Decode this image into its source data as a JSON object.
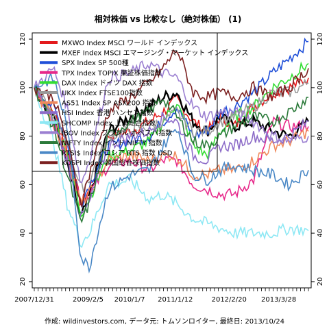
{
  "chart_data": {
    "type": "line",
    "title": "相対株価 vs 比較なし（絶対株価） (1)",
    "credit": "作成: wildinvestors.com, データ元: トムソンロイター, 最終日: 2013/10/24",
    "x_tick_labels": [
      "2007/12/31",
      "2009/2/5",
      "2010/1/7",
      "2011/1/12",
      "2012/2/20",
      "2013/3/28"
    ],
    "x_ticks": [
      0,
      0.1963,
      0.3477,
      0.5144,
      0.7106,
      0.8916
    ],
    "y_ticks": [
      20,
      40,
      60,
      80,
      100,
      120
    ],
    "ylim": [
      18,
      122
    ],
    "legend_placement": "top-left",
    "series": [
      {
        "name": "MXWO Index MSCI ワールド インデックス",
        "color": "#e31a1c",
        "points": [
          [
            0,
            100
          ],
          [
            0.07,
            90
          ],
          [
            0.12,
            75
          ],
          [
            0.17,
            52
          ],
          [
            0.2,
            58
          ],
          [
            0.27,
            80
          ],
          [
            0.35,
            82
          ],
          [
            0.42,
            86
          ],
          [
            0.47,
            90
          ],
          [
            0.52,
            95
          ],
          [
            0.58,
            86
          ],
          [
            0.63,
            82
          ],
          [
            0.68,
            88
          ],
          [
            0.73,
            84
          ],
          [
            0.8,
            92
          ],
          [
            0.87,
            98
          ],
          [
            0.93,
            100
          ],
          [
            1,
            104
          ]
        ]
      },
      {
        "name": "MXEF Index MSCI エマージング・マーケット インデックス",
        "color": "#000000",
        "points": [
          [
            0,
            100
          ],
          [
            0.07,
            88
          ],
          [
            0.12,
            68
          ],
          [
            0.17,
            46
          ],
          [
            0.2,
            55
          ],
          [
            0.27,
            82
          ],
          [
            0.35,
            88
          ],
          [
            0.42,
            92
          ],
          [
            0.47,
            96
          ],
          [
            0.52,
            98
          ],
          [
            0.58,
            86
          ],
          [
            0.63,
            82
          ],
          [
            0.68,
            88
          ],
          [
            0.73,
            84
          ],
          [
            0.8,
            86
          ],
          [
            0.87,
            82
          ],
          [
            0.93,
            80
          ],
          [
            1,
            86
          ]
        ]
      },
      {
        "name": "SPX Index SP 500種",
        "color": "#1f4fd8",
        "points": [
          [
            0,
            100
          ],
          [
            0.07,
            92
          ],
          [
            0.12,
            78
          ],
          [
            0.17,
            52
          ],
          [
            0.2,
            60
          ],
          [
            0.27,
            76
          ],
          [
            0.35,
            78
          ],
          [
            0.42,
            80
          ],
          [
            0.47,
            86
          ],
          [
            0.52,
            92
          ],
          [
            0.58,
            80
          ],
          [
            0.63,
            82
          ],
          [
            0.68,
            90
          ],
          [
            0.73,
            92
          ],
          [
            0.8,
            98
          ],
          [
            0.87,
            106
          ],
          [
            0.93,
            112
          ],
          [
            1,
            119
          ]
        ]
      },
      {
        "name": "TPX Index TOPIX 東証株価指数",
        "color": "#e7298a",
        "points": [
          [
            0,
            100
          ],
          [
            0.07,
            86
          ],
          [
            0.12,
            72
          ],
          [
            0.17,
            54
          ],
          [
            0.2,
            56
          ],
          [
            0.27,
            68
          ],
          [
            0.35,
            70
          ],
          [
            0.42,
            66
          ],
          [
            0.47,
            70
          ],
          [
            0.52,
            70
          ],
          [
            0.58,
            60
          ],
          [
            0.63,
            58
          ],
          [
            0.68,
            56
          ],
          [
            0.73,
            56
          ],
          [
            0.8,
            62
          ],
          [
            0.87,
            86
          ],
          [
            0.93,
            84
          ],
          [
            1,
            84
          ]
        ]
      },
      {
        "name": "DAX Index ドイツ DAX 指数",
        "color": "#33dd33",
        "points": [
          [
            0,
            100
          ],
          [
            0.07,
            88
          ],
          [
            0.12,
            74
          ],
          [
            0.17,
            48
          ],
          [
            0.2,
            54
          ],
          [
            0.27,
            72
          ],
          [
            0.35,
            74
          ],
          [
            0.42,
            78
          ],
          [
            0.47,
            86
          ],
          [
            0.52,
            94
          ],
          [
            0.58,
            76
          ],
          [
            0.63,
            72
          ],
          [
            0.68,
            82
          ],
          [
            0.73,
            88
          ],
          [
            0.8,
            92
          ],
          [
            0.87,
            100
          ],
          [
            0.93,
            104
          ],
          [
            1,
            110
          ]
        ]
      },
      {
        "name": "UKX Index FTSE100指数",
        "color": "#999999",
        "points": [
          [
            0,
            100
          ],
          [
            0.07,
            88
          ],
          [
            0.12,
            78
          ],
          [
            0.17,
            58
          ],
          [
            0.2,
            62
          ],
          [
            0.27,
            80
          ],
          [
            0.35,
            82
          ],
          [
            0.42,
            84
          ],
          [
            0.47,
            86
          ],
          [
            0.52,
            90
          ],
          [
            0.58,
            82
          ],
          [
            0.63,
            82
          ],
          [
            0.68,
            86
          ],
          [
            0.73,
            88
          ],
          [
            0.8,
            92
          ],
          [
            0.87,
            98
          ],
          [
            0.93,
            98
          ],
          [
            1,
            102
          ]
        ]
      },
      {
        "name": "AS51 Index SP ASX200 指数",
        "color": "#f08a5d",
        "points": [
          [
            0,
            100
          ],
          [
            0.07,
            86
          ],
          [
            0.12,
            72
          ],
          [
            0.17,
            52
          ],
          [
            0.2,
            56
          ],
          [
            0.27,
            70
          ],
          [
            0.35,
            72
          ],
          [
            0.42,
            70
          ],
          [
            0.47,
            72
          ],
          [
            0.52,
            72
          ],
          [
            0.58,
            64
          ],
          [
            0.63,
            64
          ],
          [
            0.68,
            66
          ],
          [
            0.73,
            66
          ],
          [
            0.8,
            70
          ],
          [
            0.87,
            76
          ],
          [
            0.93,
            78
          ],
          [
            1,
            82
          ]
        ]
      },
      {
        "name": "HSI Index 香港 ハンセン指数",
        "color": "#8c6bc8",
        "points": [
          [
            0,
            100
          ],
          [
            0.07,
            86
          ],
          [
            0.12,
            70
          ],
          [
            0.17,
            46
          ],
          [
            0.2,
            52
          ],
          [
            0.27,
            76
          ],
          [
            0.35,
            80
          ],
          [
            0.42,
            82
          ],
          [
            0.47,
            88
          ],
          [
            0.52,
            86
          ],
          [
            0.58,
            72
          ],
          [
            0.63,
            70
          ],
          [
            0.68,
            76
          ],
          [
            0.73,
            76
          ],
          [
            0.8,
            80
          ],
          [
            0.87,
            78
          ],
          [
            0.93,
            80
          ],
          [
            1,
            86
          ]
        ]
      },
      {
        "name": "SHCOMP Index 上海総合指数",
        "color": "#8ee8f4",
        "points": [
          [
            0,
            100
          ],
          [
            0.07,
            78
          ],
          [
            0.12,
            52
          ],
          [
            0.17,
            36
          ],
          [
            0.2,
            40
          ],
          [
            0.27,
            60
          ],
          [
            0.35,
            62
          ],
          [
            0.42,
            54
          ],
          [
            0.47,
            56
          ],
          [
            0.52,
            52
          ],
          [
            0.58,
            46
          ],
          [
            0.63,
            44
          ],
          [
            0.68,
            42
          ],
          [
            0.73,
            40
          ],
          [
            0.8,
            40
          ],
          [
            0.87,
            40
          ],
          [
            0.93,
            42
          ],
          [
            1,
            41
          ]
        ]
      },
      {
        "name": "IBOV Index ブラジル ボベスパ指数",
        "color": "#9b7fd1",
        "points": [
          [
            0,
            100
          ],
          [
            0.07,
            108
          ],
          [
            0.12,
            92
          ],
          [
            0.17,
            60
          ],
          [
            0.2,
            70
          ],
          [
            0.27,
            104
          ],
          [
            0.35,
            106
          ],
          [
            0.42,
            110
          ],
          [
            0.47,
            106
          ],
          [
            0.52,
            104
          ],
          [
            0.58,
            92
          ],
          [
            0.63,
            88
          ],
          [
            0.68,
            90
          ],
          [
            0.73,
            90
          ],
          [
            0.8,
            86
          ],
          [
            0.87,
            80
          ],
          [
            0.93,
            78
          ],
          [
            1,
            80
          ]
        ]
      },
      {
        "name": "NIFTY Index インド NIFTY 指数",
        "color": "#2b7a3a",
        "points": [
          [
            0,
            100
          ],
          [
            0.07,
            84
          ],
          [
            0.12,
            64
          ],
          [
            0.17,
            44
          ],
          [
            0.2,
            52
          ],
          [
            0.27,
            80
          ],
          [
            0.35,
            86
          ],
          [
            0.42,
            90
          ],
          [
            0.47,
            96
          ],
          [
            0.52,
            88
          ],
          [
            0.58,
            78
          ],
          [
            0.63,
            76
          ],
          [
            0.68,
            80
          ],
          [
            0.73,
            84
          ],
          [
            0.8,
            88
          ],
          [
            0.87,
            86
          ],
          [
            0.93,
            90
          ],
          [
            1,
            96
          ]
        ]
      },
      {
        "name": "RTSI$ Index ロシア RTS 指数 USD",
        "color": "#4a88c6",
        "points": [
          [
            0,
            100
          ],
          [
            0.07,
            104
          ],
          [
            0.12,
            84
          ],
          [
            0.17,
            30
          ],
          [
            0.2,
            26
          ],
          [
            0.27,
            58
          ],
          [
            0.35,
            64
          ],
          [
            0.42,
            66
          ],
          [
            0.47,
            76
          ],
          [
            0.52,
            84
          ],
          [
            0.58,
            64
          ],
          [
            0.63,
            62
          ],
          [
            0.68,
            66
          ],
          [
            0.73,
            68
          ],
          [
            0.8,
            66
          ],
          [
            0.87,
            64
          ],
          [
            0.93,
            60
          ],
          [
            1,
            66
          ]
        ]
      },
      {
        "name": "KOSPI Index 韓国総合株価指数",
        "color": "#7b2020",
        "points": [
          [
            0,
            100
          ],
          [
            0.07,
            96
          ],
          [
            0.12,
            78
          ],
          [
            0.17,
            52
          ],
          [
            0.2,
            64
          ],
          [
            0.27,
            90
          ],
          [
            0.35,
            96
          ],
          [
            0.42,
            102
          ],
          [
            0.47,
            108
          ],
          [
            0.52,
            116
          ],
          [
            0.58,
            98
          ],
          [
            0.63,
            96
          ],
          [
            0.68,
            98
          ],
          [
            0.73,
            96
          ],
          [
            0.8,
            100
          ],
          [
            0.87,
            96
          ],
          [
            0.93,
            100
          ],
          [
            1,
            108
          ]
        ]
      }
    ]
  }
}
